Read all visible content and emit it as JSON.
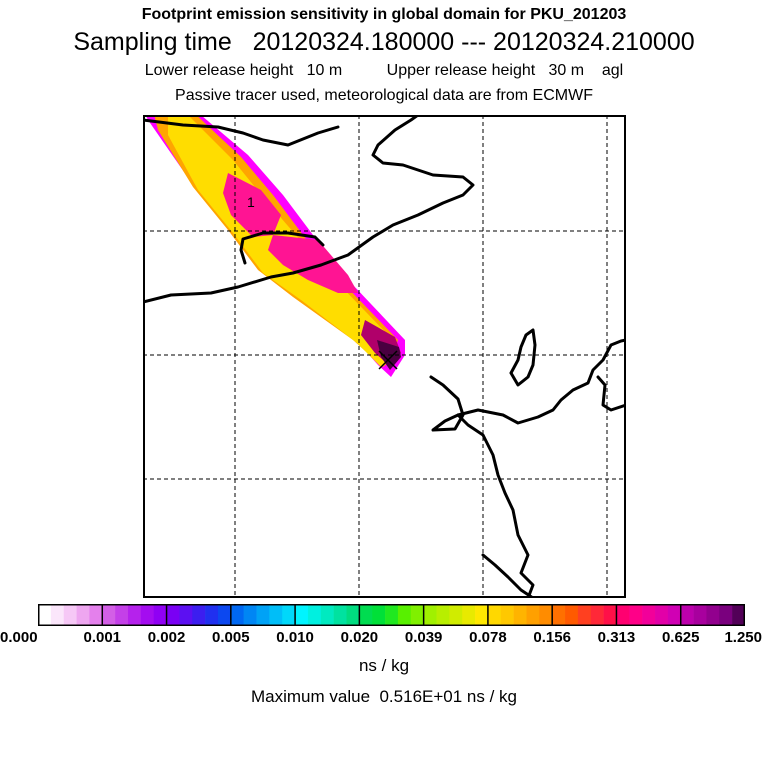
{
  "header": {
    "title": "Footprint emission sensitivity in global domain for PKU_201203",
    "sampling": "Sampling time   20120324.180000 --- 20120324.210000",
    "release": "Lower release height   10 m          Upper release height   30 m    agl",
    "tracer": "Passive tracer used, meteorological data are from ECMWF"
  },
  "map": {
    "contour_label": "1",
    "colors": {
      "magenta": "#ff00ff",
      "orange": "#ffa500",
      "yellow": "#ffdd00",
      "pink": "#ff1493",
      "deep": "#b0006a",
      "max": "#4a0040"
    }
  },
  "legend": {
    "ticks": [
      "0.000",
      "0.001",
      "0.002",
      "0.005",
      "0.010",
      "0.020",
      "0.039",
      "0.078",
      "0.156",
      "0.313",
      "0.625",
      "1.250"
    ],
    "unit": "ns / kg",
    "max_text": "Maximum value  0.516E+01 ns / kg",
    "groups": [
      [
        "#ffffff",
        "#fbe6fb",
        "#f6c8f6",
        "#eea6f0",
        "#e480ec"
      ],
      [
        "#d35fe6",
        "#c440e8",
        "#b522ec",
        "#a40cf0",
        "#9000f4"
      ],
      [
        "#7a00f4",
        "#5c10f2",
        "#3c1ef0",
        "#2030f0",
        "#0c48f0"
      ],
      [
        "#0068f2",
        "#0086f4",
        "#00a2f6",
        "#00bef8",
        "#00d8fa"
      ],
      [
        "#00f4ff",
        "#00f0e0",
        "#00eac0",
        "#00e2a0",
        "#00dc80"
      ],
      [
        "#00dc50",
        "#00e038",
        "#20e820",
        "#58f000",
        "#80f000"
      ],
      [
        "#a0f000",
        "#b8ee00",
        "#d0ec00",
        "#e8ea00",
        "#ffe800"
      ],
      [
        "#ffd800",
        "#ffc800",
        "#ffb400",
        "#ffa000",
        "#ff8c00"
      ],
      [
        "#ff7000",
        "#ff5a00",
        "#ff4020",
        "#ff2838",
        "#ff1048"
      ],
      [
        "#ff0070",
        "#ff0088",
        "#f2009a",
        "#e200a8",
        "#d000b4"
      ],
      [
        "#bc00ac",
        "#a8009e",
        "#92008e",
        "#7a007e",
        "#520058"
      ]
    ]
  }
}
